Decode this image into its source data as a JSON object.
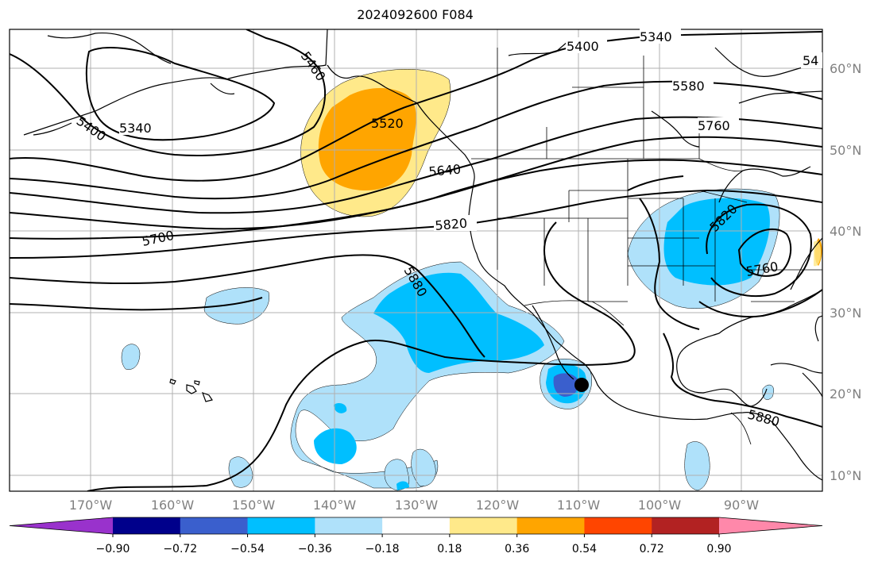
{
  "title": "2024092600 F084",
  "latitudes": [
    "60°N",
    "50°N",
    "40°N",
    "30°N",
    "20°N",
    "10°N"
  ],
  "longitudes": [
    "170°W",
    "160°W",
    "150°W",
    "140°W",
    "130°W",
    "120°W",
    "110°W",
    "100°W",
    "90°W"
  ],
  "colorbar": {
    "ticks": [
      "−0.90",
      "−0.72",
      "−0.54",
      "−0.36",
      "−0.18",
      "0.18",
      "0.36",
      "0.54",
      "0.72",
      "0.90"
    ],
    "colors": [
      "#9932cc",
      "#00008b",
      "#3a5fcd",
      "#00bfff",
      "#afe1fa",
      "#ffffff",
      "#ffe98a",
      "#ffa500",
      "#ff4500",
      "#b22222",
      "#ff88aa"
    ]
  },
  "contour_labels": [
    "5340",
    "5400",
    "5460",
    "5520",
    "5580",
    "5640",
    "5700",
    "5760",
    "5820",
    "5880"
  ],
  "labels": {
    "c5340_top": "5340",
    "c5340_left": "5340",
    "c5400_top": "5400",
    "c5400_left": "5400",
    "c5460": "5460",
    "c54_edge": "54",
    "c5520": "5520",
    "c5580": "5580",
    "c5640": "5640",
    "c5700": "5700",
    "c5760_top": "5760",
    "c5760_low": "5760",
    "c5820_a": "5820",
    "c5820_b": "5820",
    "c5880_a": "5880",
    "c5880_b": "5880"
  },
  "map": {
    "type": "geopotential height contours with anomaly shading",
    "extent": {
      "lon": [
        -180,
        -80
      ],
      "lat": [
        8,
        65
      ]
    },
    "shading_colors": {
      "weak_positive": "#ffe98a",
      "positive": "#ffa500",
      "weak_negative": "#afe1fa",
      "negative": "#00bfff",
      "strong_negative": "#3a5fcd"
    }
  }
}
